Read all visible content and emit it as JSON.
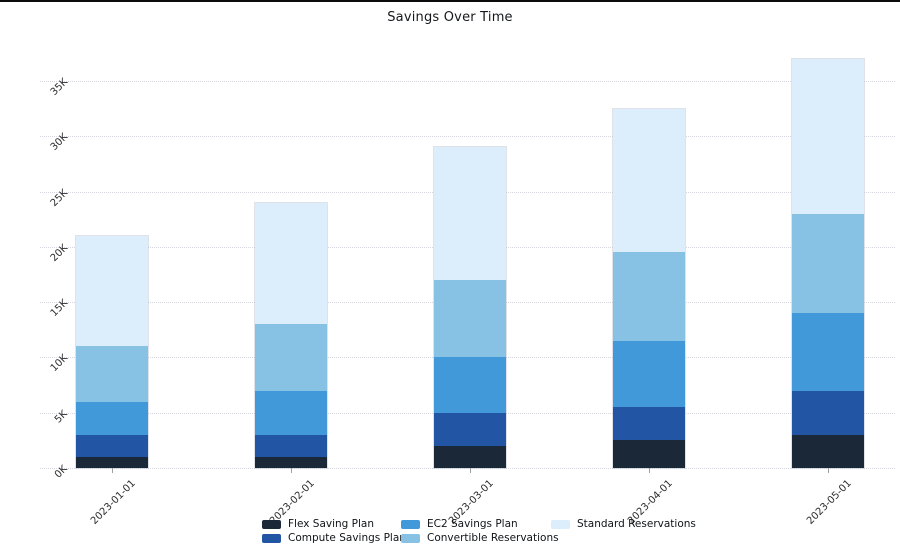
{
  "title": "Savings Over Time",
  "chart_data": {
    "type": "bar",
    "stacked": true,
    "title": "Savings Over Time",
    "xlabel": "",
    "ylabel": "",
    "categories": [
      "2023-01-01",
      "2023-02-01",
      "2023-03-01",
      "2023-04-01",
      "2023-05-01"
    ],
    "series": [
      {
        "name": "Flex Saving Plan",
        "color": "#1a2837",
        "values": [
          1000,
          1000,
          2000,
          2500,
          3000
        ]
      },
      {
        "name": "Compute Savings Plan",
        "color": "#2255a4",
        "values": [
          2000,
          2000,
          3000,
          3000,
          4000
        ]
      },
      {
        "name": "EC2 Savings Plan",
        "color": "#4299d9",
        "values": [
          3000,
          4000,
          5000,
          6000,
          7000
        ]
      },
      {
        "name": "Convertible Reservations",
        "color": "#87c1e4",
        "values": [
          5000,
          6000,
          7000,
          8000,
          9000
        ]
      },
      {
        "name": "Standard Reservations",
        "color": "#dceefb",
        "values": [
          10000,
          11000,
          12000,
          13000,
          14000
        ]
      }
    ],
    "totals": [
      21000,
      24000,
      29000,
      32500,
      37000
    ],
    "y_ticks": [
      "0K",
      "5K",
      "10K",
      "15K",
      "20K",
      "25K",
      "30K",
      "35K"
    ],
    "y_tick_interval": 5000,
    "ylim": [
      0,
      38000
    ],
    "grid": "horizontal-dotted",
    "legend_position": "bottom"
  }
}
